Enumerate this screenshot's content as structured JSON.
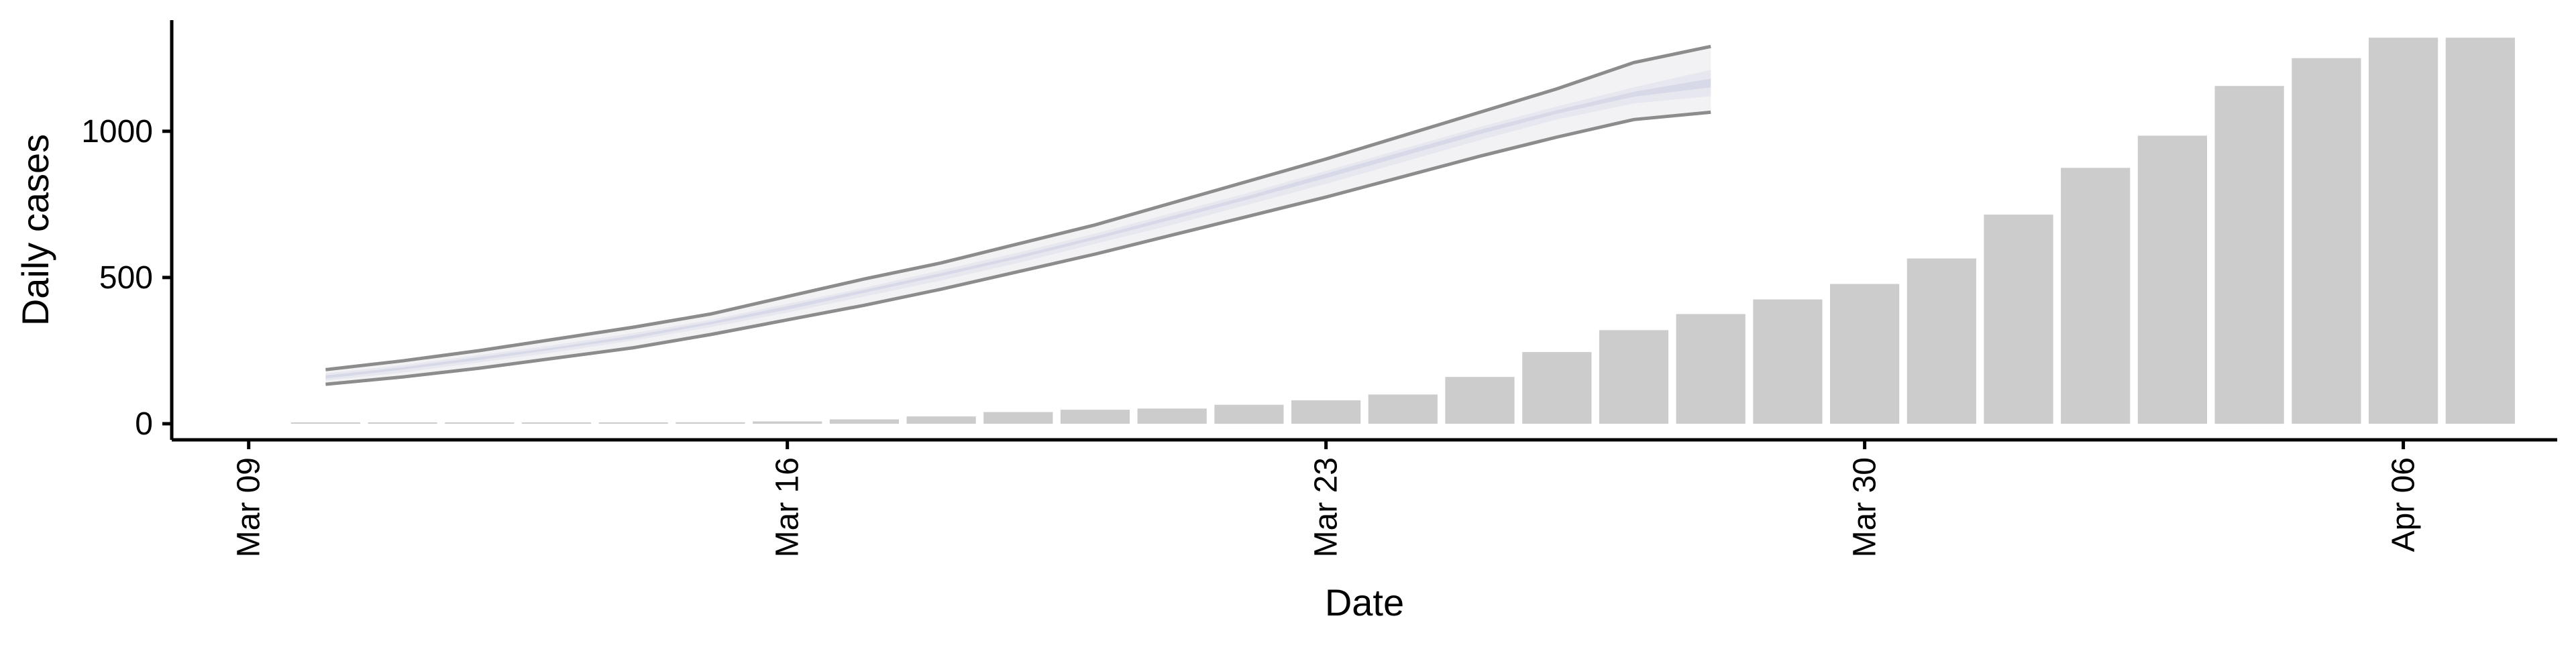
{
  "chart_data": {
    "type": "bar",
    "xlabel": "Date",
    "ylabel": "Daily cases",
    "ylim": [
      -55,
      1380
    ],
    "xlim": [
      "2020-03-08",
      "2020-04-08"
    ],
    "y_ticks": [
      0,
      500,
      1000
    ],
    "x_ticks": [
      {
        "date": "2020-03-09",
        "label": "Mar 09"
      },
      {
        "date": "2020-03-16",
        "label": "Mar 16"
      },
      {
        "date": "2020-03-23",
        "label": "Mar 23"
      },
      {
        "date": "2020-03-30",
        "label": "Mar 30"
      },
      {
        "date": "2020-04-06",
        "label": "Apr 06"
      }
    ],
    "grid": false,
    "legend": "none",
    "bar_color": "#cccccc",
    "series": [
      {
        "type": "bar",
        "x": [
          "2020-03-10",
          "2020-03-11",
          "2020-03-12",
          "2020-03-13",
          "2020-03-14",
          "2020-03-15",
          "2020-03-16",
          "2020-03-17",
          "2020-03-18",
          "2020-03-19",
          "2020-03-20",
          "2020-03-21",
          "2020-03-22",
          "2020-03-23",
          "2020-03-24",
          "2020-03-25",
          "2020-03-26",
          "2020-03-27",
          "2020-03-28",
          "2020-03-29",
          "2020-03-30",
          "2020-03-31",
          "2020-04-01",
          "2020-04-02",
          "2020-04-03",
          "2020-04-04",
          "2020-04-05",
          "2020-04-06",
          "2020-04-07"
        ],
        "values": [
          1,
          1,
          2,
          2,
          3,
          5,
          8,
          15,
          25,
          40,
          48,
          52,
          65,
          80,
          100,
          160,
          245,
          320,
          375,
          425,
          478,
          565,
          715,
          875,
          985,
          1155,
          1250,
          1320,
          1320
        ]
      }
    ],
    "nowcast": {
      "x": [
        "2020-03-10",
        "2020-03-11",
        "2020-03-12",
        "2020-03-13",
        "2020-03-14",
        "2020-03-15",
        "2020-03-16",
        "2020-03-17",
        "2020-03-18",
        "2020-03-19",
        "2020-03-20",
        "2020-03-21",
        "2020-03-22",
        "2020-03-23",
        "2020-03-24",
        "2020-03-25",
        "2020-03-26",
        "2020-03-27",
        "2020-03-28"
      ],
      "lower90": [
        135,
        160,
        190,
        225,
        260,
        305,
        355,
        405,
        460,
        520,
        580,
        645,
        710,
        775,
        845,
        915,
        980,
        1040,
        1065
      ],
      "upper90": [
        185,
        215,
        250,
        290,
        330,
        375,
        435,
        495,
        550,
        615,
        680,
        755,
        830,
        905,
        985,
        1065,
        1145,
        1235,
        1290
      ],
      "lower50": [
        148,
        175,
        210,
        245,
        285,
        330,
        380,
        435,
        490,
        550,
        615,
        680,
        750,
        820,
        895,
        970,
        1040,
        1095,
        1120
      ],
      "upper50": [
        172,
        200,
        235,
        270,
        310,
        355,
        410,
        465,
        525,
        585,
        650,
        720,
        790,
        865,
        940,
        1015,
        1085,
        1150,
        1210
      ],
      "lower25": [
        155,
        185,
        218,
        255,
        292,
        340,
        390,
        448,
        505,
        565,
        630,
        698,
        768,
        840,
        915,
        990,
        1060,
        1118,
        1150
      ],
      "upper25": [
        165,
        193,
        228,
        262,
        302,
        348,
        402,
        458,
        515,
        575,
        640,
        710,
        780,
        855,
        930,
        1005,
        1072,
        1135,
        1180
      ],
      "line_color": "#8c8c8c",
      "band_colors": [
        "#f2f2f5",
        "#e6e7ef",
        "#d7d9e8"
      ]
    }
  }
}
